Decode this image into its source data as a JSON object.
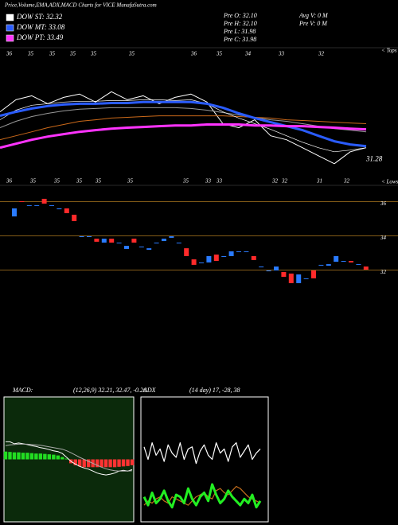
{
  "chart_data": [
    {
      "type": "line",
      "title": "Price,Volume,EMA,ADX,MACD Charts for VICE MunafaSutra.com",
      "stats": [
        "Pre O: 32.10",
        "Pre H: 32.10",
        "Pre L: 31.98",
        "Pre C: 31.98"
      ],
      "volume_stats": [
        "Avg V: 0  M",
        "Pre V: 0  M"
      ],
      "tops_label": "< Tops",
      "lows_label": "< Lows",
      "top_labels": [
        36,
        35,
        35,
        35,
        35,
        35,
        36,
        35,
        34,
        33,
        32
      ],
      "bottom_labels": [
        36,
        35,
        35,
        35,
        35,
        35,
        35,
        33,
        33,
        32,
        32,
        31,
        32
      ],
      "last_value": 31.28,
      "ylim": [
        30,
        38.6
      ],
      "series": [
        {
          "color": "#ffffff",
          "width": 1,
          "values": [
            34.4,
            35.19,
            35.45,
            34.93,
            35.35,
            35.56,
            35.04,
            35.72,
            35.19,
            35.45,
            34.93,
            35.35,
            35.56,
            35.04,
            33.62,
            33.36,
            33.88,
            32.83,
            32.57,
            32.05,
            31.52,
            31.0,
            31.78,
            32.05
          ]
        },
        {
          "color": "#999999",
          "width": 1,
          "values": [
            33.36,
            33.78,
            34.09,
            34.3,
            34.46,
            34.57,
            34.62,
            34.67,
            34.67,
            34.67,
            34.67,
            34.67,
            34.62,
            34.51,
            34.35,
            34.19,
            34.04,
            33.88,
            33.78,
            33.62,
            33.46,
            33.3,
            33.2,
            33.09
          ]
        },
        {
          "color": "#cc6a1a",
          "width": 1,
          "values": [
            32.57,
            32.83,
            33.09,
            33.36,
            33.57,
            33.78,
            33.88,
            33.99,
            34.04,
            34.09,
            34.14,
            34.14,
            34.14,
            34.14,
            34.14,
            34.09,
            34.04,
            33.99,
            33.88,
            33.83,
            33.78,
            33.72,
            33.67,
            33.62
          ]
        },
        {
          "name": "DOW ST: 32.32",
          "color": "#ffffff",
          "width": 0.7,
          "values": [
            33.88,
            34.51,
            34.83,
            34.93,
            35.04,
            35.09,
            35.09,
            35.14,
            35.14,
            35.19,
            35.19,
            35.14,
            35.19,
            34.93,
            34.4,
            33.99,
            33.62,
            33.25,
            32.83,
            32.41,
            32.05,
            31.78,
            31.89,
            32.05
          ]
        },
        {
          "name": "DOW MT: 33.08",
          "color": "#2a5cff",
          "width": 3,
          "values": [
            34.14,
            34.4,
            34.62,
            34.78,
            34.88,
            34.93,
            34.93,
            34.98,
            34.98,
            35.04,
            35.04,
            35.04,
            35.04,
            34.93,
            34.67,
            34.3,
            33.99,
            33.72,
            33.46,
            33.2,
            32.83,
            32.47,
            32.26,
            32.15
          ]
        },
        {
          "name": "DOW PT: 33.49",
          "color": "#ff33ff",
          "width": 3,
          "values": [
            32.05,
            32.31,
            32.57,
            32.78,
            32.94,
            33.09,
            33.2,
            33.3,
            33.36,
            33.41,
            33.46,
            33.51,
            33.51,
            33.57,
            33.57,
            33.57,
            33.51,
            33.51,
            33.46,
            33.46,
            33.41,
            33.36,
            33.3,
            33.25
          ]
        }
      ]
    },
    {
      "type": "candlestick",
      "ylim": [
        30.4,
        36.4
      ],
      "yticks": [
        32,
        34,
        36
      ],
      "grid_color": "#b07a20",
      "up_color": "#2a7bff",
      "down_color": "#ff2a2a",
      "open": [
        35.14,
        36.03,
        35.8,
        35.8,
        36.17,
        35.8,
        35.56,
        35.61,
        35.24,
        33.98,
        33.98,
        33.84,
        33.61,
        33.84,
        33.61,
        33.24,
        33.84,
        33.38,
        33.19,
        33.61,
        33.7,
        33.89,
        33.61,
        33.28,
        32.63,
        32.45,
        32.45,
        32.91,
        32.82,
        32.82,
        33.1,
        33.1,
        32.82,
        32.21,
        31.98,
        31.98,
        31.89,
        31.8,
        31.24,
        31.52,
        31.98,
        32.31,
        32.26,
        32.49,
        32.54,
        32.54,
        32.35,
        32.21
      ],
      "close": [
        35.61,
        35.98,
        35.8,
        35.8,
        35.89,
        35.8,
        35.61,
        35.33,
        34.87,
        33.98,
        33.98,
        33.66,
        33.84,
        33.61,
        33.61,
        33.42,
        33.61,
        33.38,
        33.28,
        33.61,
        33.84,
        33.98,
        33.61,
        32.82,
        32.31,
        32.45,
        32.82,
        32.54,
        32.82,
        33.1,
        33.1,
        33.1,
        32.59,
        32.21,
        31.98,
        32.21,
        31.61,
        31.24,
        31.75,
        31.52,
        31.52,
        32.31,
        32.35,
        32.82,
        32.54,
        32.45,
        32.35,
        32.03
      ]
    },
    {
      "type": "macd",
      "title": "MACD:",
      "subtitle": "(12,26,9) 32.21, 32.47, -0.26",
      "ylim": [
        -1.6,
        1.6
      ],
      "background": "#0b2a0b",
      "histogram": {
        "up_color": "#22dd22",
        "down_color": "#ff3333",
        "values": [
          0.2,
          0.19,
          0.18,
          0.18,
          0.17,
          0.17,
          0.16,
          0.15,
          0.15,
          0.14,
          0.13,
          0.12,
          0.1,
          0.06,
          0.02,
          -0.1,
          -0.15,
          -0.18,
          -0.2,
          -0.2,
          -0.2,
          -0.2,
          -0.2,
          -0.2,
          -0.2,
          -0.2,
          -0.19,
          -0.18,
          -0.17,
          -0.15
        ]
      },
      "series": [
        {
          "color": "#ffffff",
          "values": [
            0.45,
            0.45,
            0.4,
            0.42,
            0.4,
            0.38,
            0.35,
            0.33,
            0.3,
            0.28,
            0.25,
            0.22,
            0.2,
            0.15,
            0.05,
            -0.05,
            -0.12,
            -0.18,
            -0.22,
            -0.25,
            -0.3,
            -0.35,
            -0.38,
            -0.4,
            -0.38,
            -0.35,
            -0.3,
            -0.28,
            -0.3,
            -0.26
          ]
        },
        {
          "color": "#aaaaaa",
          "values": [
            0.35,
            0.37,
            0.38,
            0.39,
            0.39,
            0.39,
            0.38,
            0.37,
            0.36,
            0.34,
            0.32,
            0.3,
            0.28,
            0.26,
            0.22,
            0.17,
            0.11,
            0.05,
            0,
            -0.05,
            -0.1,
            -0.15,
            -0.2,
            -0.24,
            -0.27,
            -0.29,
            -0.3,
            -0.3,
            -0.3,
            -0.29
          ]
        }
      ]
    },
    {
      "type": "adx",
      "title": "ADX",
      "subtitle": "(14 day) 17, -28, 38",
      "ylim": [
        0,
        60
      ],
      "background": "#000000",
      "series": [
        {
          "color": "#ffffff",
          "values": [
            36,
            30,
            38,
            32,
            35,
            29,
            37,
            33,
            31,
            38,
            30,
            35,
            36,
            28,
            34,
            37,
            32,
            30,
            38,
            33,
            35,
            29,
            36,
            38,
            31,
            34,
            37,
            30,
            33,
            35
          ]
        },
        {
          "color": "#c8701c",
          "values": [
            8,
            10,
            9,
            11,
            12,
            10,
            9,
            12,
            11,
            10,
            9,
            8,
            10,
            12,
            13,
            14,
            12,
            11,
            15,
            16,
            14,
            13,
            15,
            17,
            16,
            14,
            12,
            11,
            10,
            9
          ]
        },
        {
          "color": "#22ee22",
          "width": 3,
          "values": [
            12,
            8,
            14,
            9,
            11,
            15,
            10,
            7,
            13,
            12,
            9,
            16,
            11,
            8,
            12,
            14,
            10,
            18,
            13,
            9,
            11,
            15,
            12,
            10,
            8,
            11,
            9,
            13,
            7,
            10
          ]
        }
      ]
    }
  ]
}
